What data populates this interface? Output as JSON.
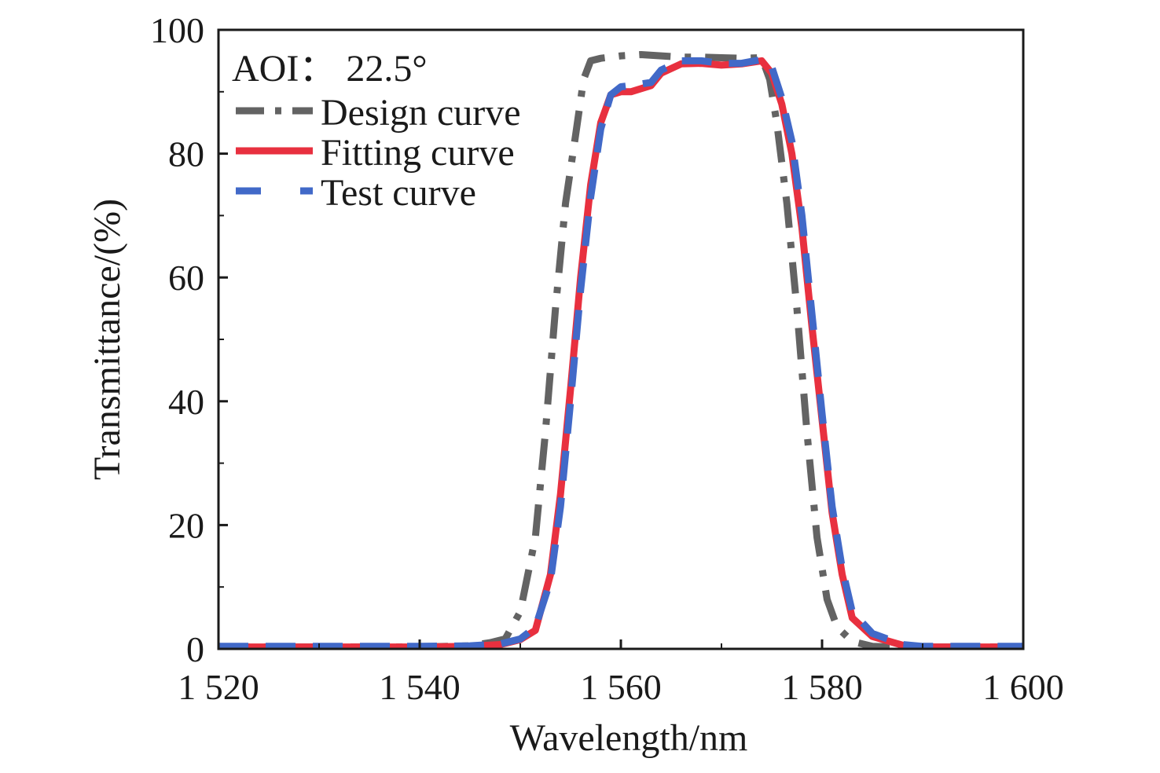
{
  "chart_data": {
    "type": "line",
    "title": "",
    "annotation": "AOI： 22.5°",
    "xlabel": "Wavelength/nm",
    "ylabel": "Transmittance/(%)",
    "xlim": [
      1520,
      1600
    ],
    "ylim": [
      0,
      100
    ],
    "xticks": [
      1520,
      1540,
      1560,
      1580,
      1600
    ],
    "xtick_labels": [
      "1 520",
      "1 540",
      "1 560",
      "1 580",
      "1 600"
    ],
    "yticks": [
      0,
      20,
      40,
      60,
      80,
      100
    ],
    "ytick_labels": [
      "0",
      "20",
      "40",
      "60",
      "80",
      "100"
    ],
    "grid": false,
    "legend_position": "top-left",
    "series": [
      {
        "name": "Design curve",
        "color": "#636363",
        "style": "dash-dot",
        "x": [
          1520,
          1530,
          1540,
          1545,
          1547,
          1548.5,
          1550,
          1551.5,
          1552.5,
          1553.5,
          1554.5,
          1555.5,
          1556.3,
          1557,
          1558,
          1560,
          1562,
          1564,
          1566,
          1568,
          1570,
          1572,
          1574,
          1574.8,
          1575.5,
          1576.5,
          1577.5,
          1578.5,
          1579.5,
          1580.5,
          1581.5,
          1583,
          1585,
          1587,
          1590,
          1600
        ],
        "y": [
          0.3,
          0.3,
          0.3,
          0.5,
          1,
          1.6,
          6,
          18,
          35,
          55,
          72,
          83,
          92,
          95,
          95.4,
          95.8,
          96,
          95.8,
          95.6,
          95.6,
          95.5,
          95.4,
          95.5,
          92,
          85,
          72,
          55,
          35,
          18,
          8,
          3.5,
          1.2,
          0.4,
          0.3,
          0.3,
          0.3
        ]
      },
      {
        "name": "Fitting curve",
        "color": "#e8303f",
        "style": "solid",
        "x": [
          1520,
          1530,
          1540,
          1545,
          1548,
          1550,
          1551.5,
          1553,
          1554,
          1555,
          1556,
          1557,
          1558,
          1559,
          1560,
          1561,
          1563,
          1564,
          1566,
          1568,
          1570,
          1572,
          1574,
          1575,
          1576,
          1577,
          1578,
          1579,
          1580,
          1581,
          1582,
          1583,
          1585,
          1588,
          1590,
          1600
        ],
        "y": [
          0.3,
          0.3,
          0.3,
          0.4,
          0.7,
          1.5,
          3,
          12,
          25,
          42,
          60,
          75,
          85,
          89.5,
          90,
          90,
          91,
          93,
          94.5,
          94.6,
          94.3,
          94.5,
          95,
          93,
          88,
          80,
          68,
          52,
          37,
          22,
          12,
          5,
          2,
          0.6,
          0.3,
          0.3
        ]
      },
      {
        "name": "Test curve",
        "color": "#4169c8",
        "style": "dashed",
        "x": [
          1520,
          1530,
          1540,
          1545,
          1548,
          1550,
          1551.5,
          1553,
          1554,
          1555,
          1556,
          1557,
          1558,
          1559,
          1560,
          1561,
          1563,
          1564,
          1566,
          1568,
          1570,
          1572,
          1574,
          1575,
          1576,
          1577,
          1578,
          1579,
          1580,
          1581,
          1582,
          1583,
          1585,
          1588,
          1590,
          1600
        ],
        "y": [
          0.4,
          0.4,
          0.4,
          0.5,
          0.8,
          1.6,
          3.5,
          11,
          23,
          40,
          58,
          73,
          84,
          89.5,
          90.8,
          91,
          91.5,
          93.5,
          95,
          95,
          94.6,
          94.6,
          95.2,
          94,
          89,
          82,
          70,
          54,
          38,
          23,
          13,
          6,
          2.5,
          0.7,
          0.4,
          0.4
        ]
      }
    ]
  }
}
